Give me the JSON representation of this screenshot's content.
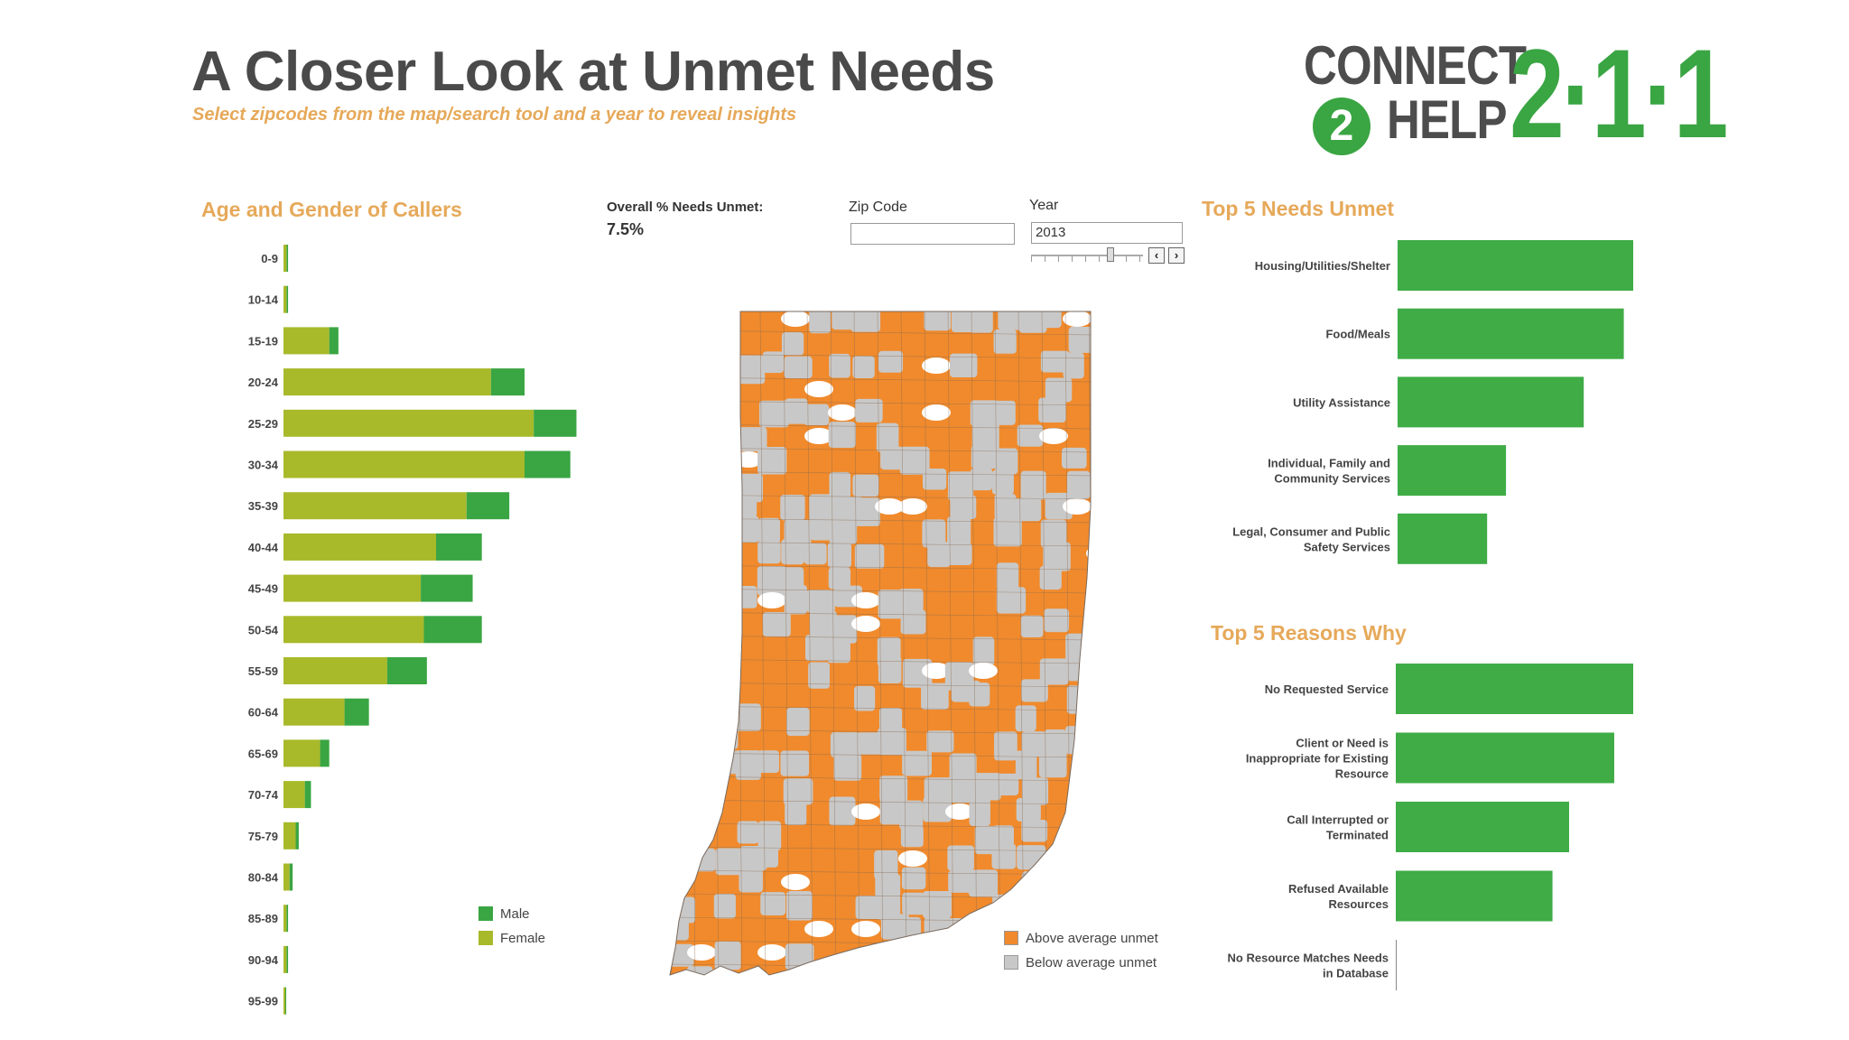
{
  "header": {
    "title": "A Closer Look at Unmet Needs",
    "subtitle": "Select zipcodes from the map/search tool and a year to reveal insights"
  },
  "logo": {
    "word1": "CONNECT",
    "two": "2",
    "word2": "HELP",
    "number": "2·1·1"
  },
  "colors": {
    "male": "#3aa543",
    "female": "#a8b92a",
    "green_bar": "#3fac46",
    "above": "#f08a2c",
    "below": "#c8c8c8",
    "title_accent": "#e6a95a"
  },
  "kpi": {
    "label": "Overall % Needs Unmet:",
    "value": "7.5%"
  },
  "filters": {
    "zip_label": "Zip Code",
    "zip_value": "",
    "year_label": "Year",
    "year_value": "2013",
    "prev_icon": "‹",
    "next_icon": "›"
  },
  "charts": {
    "age_gender": {
      "type": "bar",
      "title": "Age and Gender of Callers",
      "categories": [
        "0-9",
        "10-14",
        "15-19",
        "20-24",
        "25-29",
        "30-34",
        "35-39",
        "40-44",
        "45-49",
        "50-54",
        "55-59",
        "60-64",
        "65-69",
        "70-74",
        "75-79",
        "80-84",
        "85-89",
        "90-94",
        "95-99"
      ],
      "series": [
        {
          "name": "Female",
          "values": [
            1,
            1,
            15,
            68,
            82,
            79,
            60,
            50,
            45,
            46,
            34,
            20,
            12,
            7,
            4,
            2,
            1,
            1,
            0.5
          ]
        },
        {
          "name": "Male",
          "values": [
            0.5,
            0.5,
            3,
            11,
            14,
            15,
            14,
            15,
            17,
            19,
            13,
            8,
            3,
            2,
            1,
            1,
            0.5,
            0.5,
            0.3
          ]
        }
      ],
      "legend": [
        "Male",
        "Female"
      ]
    },
    "top_needs": {
      "type": "bar",
      "title": "Top 5 Needs Unmet",
      "categories": [
        [
          "Housing/Utilities/Shelter"
        ],
        [
          "Food/Meals"
        ],
        [
          "Utility Assistance"
        ],
        [
          "Individual, Family and",
          "Community Services"
        ],
        [
          "Legal, Consumer and Public",
          "Safety Services"
        ]
      ],
      "values": [
        100,
        96,
        79,
        46,
        38
      ]
    },
    "top_reasons": {
      "type": "bar",
      "title": "Top 5 Reasons Why",
      "categories": [
        [
          "No Requested Service"
        ],
        [
          "Client or Need is",
          "Inappropriate for Existing",
          "Resource"
        ],
        [
          "Call Interrupted or",
          "Terminated"
        ],
        [
          "Refused Available",
          "Resources"
        ],
        [
          "No Resource Matches Needs",
          "in Database"
        ]
      ],
      "values": [
        100,
        92,
        73,
        66,
        0
      ]
    }
  },
  "map": {
    "legend": [
      {
        "label": "Above average unmet",
        "color": "#f08a2c"
      },
      {
        "label": "Below average unmet",
        "color": "#c8c8c8"
      }
    ]
  }
}
